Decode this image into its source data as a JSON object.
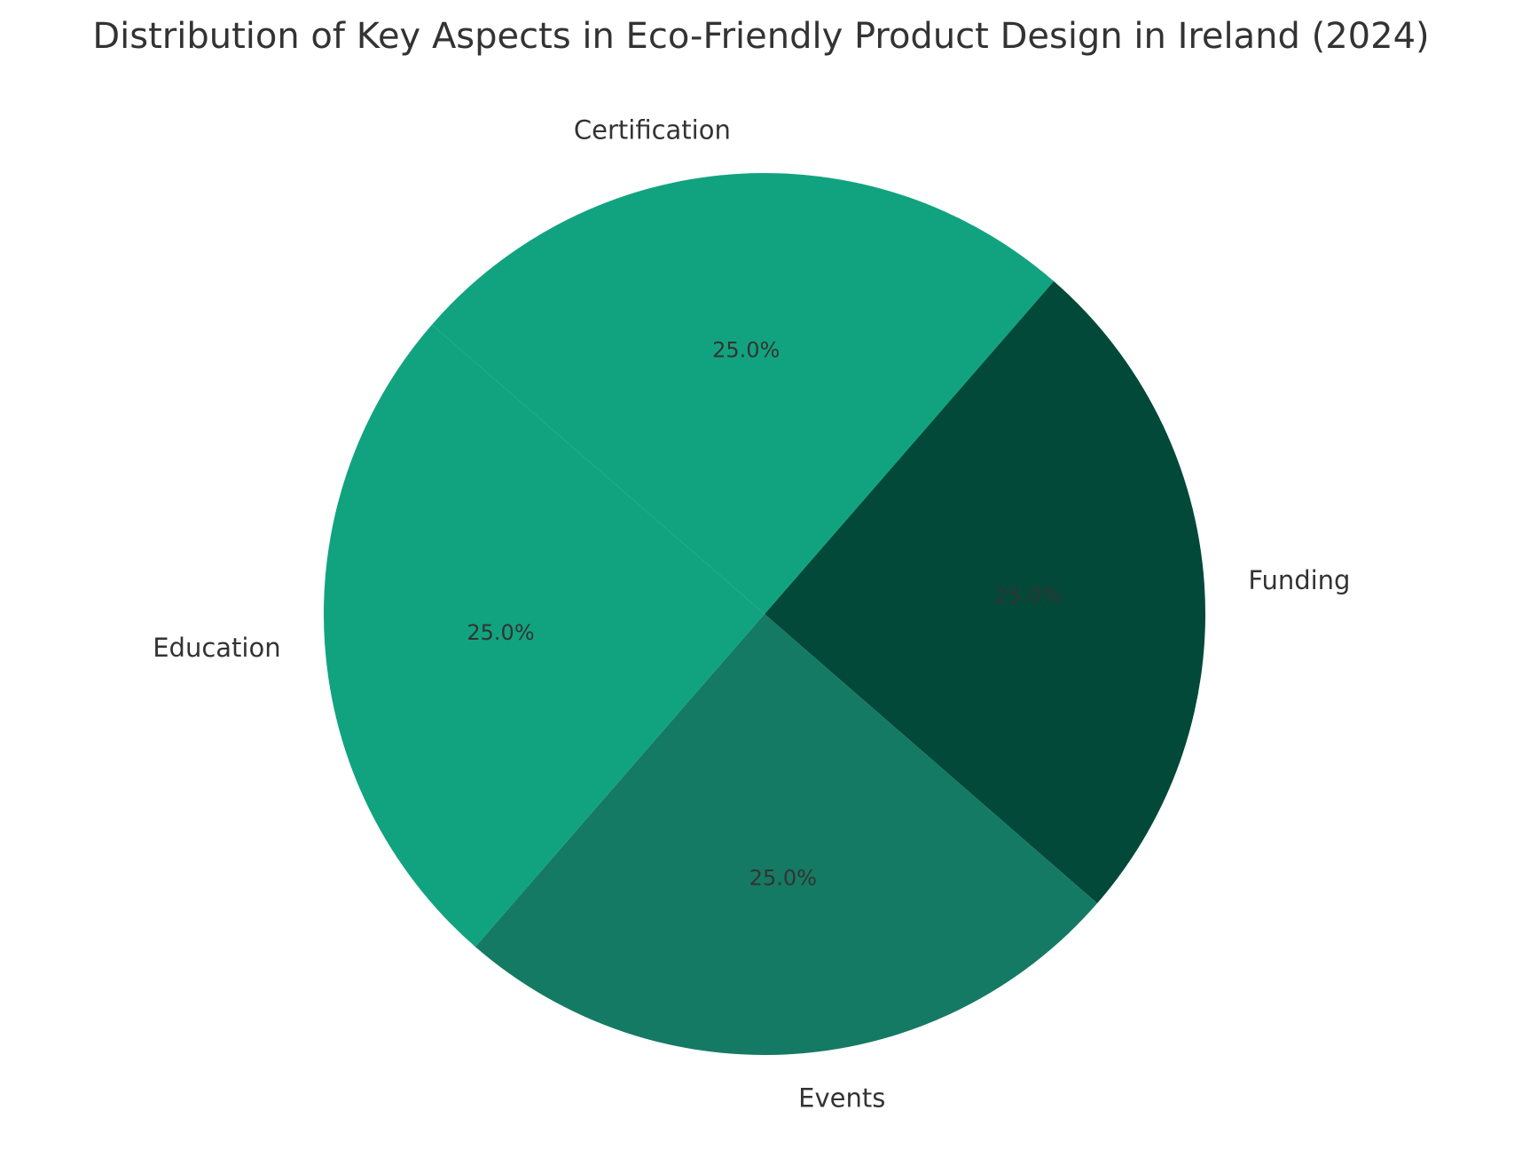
{
  "chart_data": {
    "type": "pie",
    "title": "Distribution of Key Aspects in Eco-Friendly Product Design in Ireland (2024)",
    "categories": [
      "Funding",
      "Certification",
      "Education",
      "Events"
    ],
    "values": [
      25.0,
      25.0,
      25.0,
      25.0
    ],
    "value_labels": [
      "25.0%",
      "25.0%",
      "25.0%",
      "25.0%"
    ],
    "colors": [
      "#02493A",
      "#11A37F",
      "#11A37F",
      "#157A63"
    ],
    "start_angle_deg": -41,
    "direction": "counterclockwise",
    "legend": "none"
  }
}
